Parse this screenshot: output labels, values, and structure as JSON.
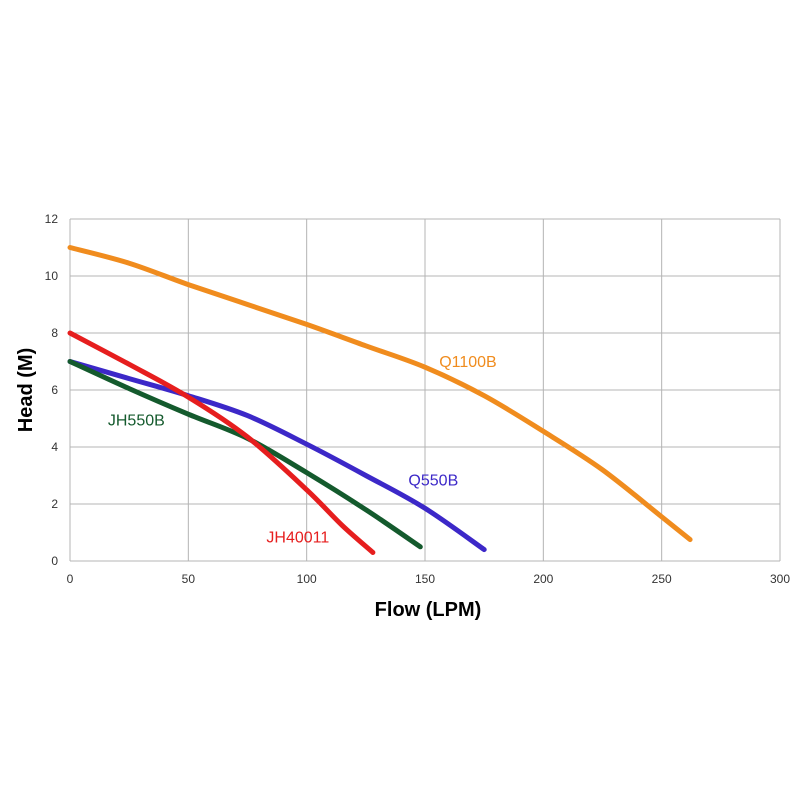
{
  "chart_data": {
    "type": "line",
    "title": "",
    "xlabel": "Flow (LPM)",
    "ylabel": "Head (M)",
    "xlim": [
      0,
      300
    ],
    "ylim": [
      0,
      12
    ],
    "xticks": [
      0,
      50,
      100,
      150,
      200,
      250,
      300
    ],
    "yticks": [
      0,
      2,
      4,
      6,
      8,
      10,
      12
    ],
    "xtick_labels": [
      "0",
      "50",
      "100",
      "150",
      "200",
      "250",
      "300"
    ],
    "ytick_labels": [
      "0",
      "2",
      "4",
      "6",
      "8",
      "10",
      "12"
    ],
    "grid": true,
    "legend": "none",
    "series": [
      {
        "name": "Q1100B",
        "color": "#f08c1e",
        "label_at": [
          156,
          6.8
        ],
        "points": [
          [
            0,
            11.0
          ],
          [
            25,
            10.45
          ],
          [
            50,
            9.7
          ],
          [
            75,
            9.0
          ],
          [
            100,
            8.3
          ],
          [
            125,
            7.55
          ],
          [
            150,
            6.8
          ],
          [
            175,
            5.8
          ],
          [
            200,
            4.55
          ],
          [
            225,
            3.2
          ],
          [
            250,
            1.55
          ],
          [
            262,
            0.75
          ]
        ]
      },
      {
        "name": "Q550B",
        "color": "#3c28c8",
        "label_at": [
          143,
          2.65
        ],
        "points": [
          [
            0,
            7.0
          ],
          [
            25,
            6.4
          ],
          [
            50,
            5.8
          ],
          [
            75,
            5.1
          ],
          [
            100,
            4.1
          ],
          [
            125,
            3.0
          ],
          [
            150,
            1.85
          ],
          [
            175,
            0.4
          ]
        ]
      },
      {
        "name": "JH550B",
        "color": "#145a2d",
        "label_at": [
          16,
          4.75
        ],
        "points": [
          [
            0,
            7.0
          ],
          [
            25,
            6.05
          ],
          [
            50,
            5.15
          ],
          [
            75,
            4.3
          ],
          [
            100,
            3.1
          ],
          [
            125,
            1.8
          ],
          [
            148,
            0.5
          ]
        ]
      },
      {
        "name": "JH40011",
        "color": "#e61e1e",
        "label_at": [
          83,
          0.65
        ],
        "points": [
          [
            0,
            8.0
          ],
          [
            25,
            6.9
          ],
          [
            50,
            5.75
          ],
          [
            75,
            4.35
          ],
          [
            100,
            2.5
          ],
          [
            115,
            1.25
          ],
          [
            128,
            0.3
          ]
        ]
      }
    ]
  }
}
